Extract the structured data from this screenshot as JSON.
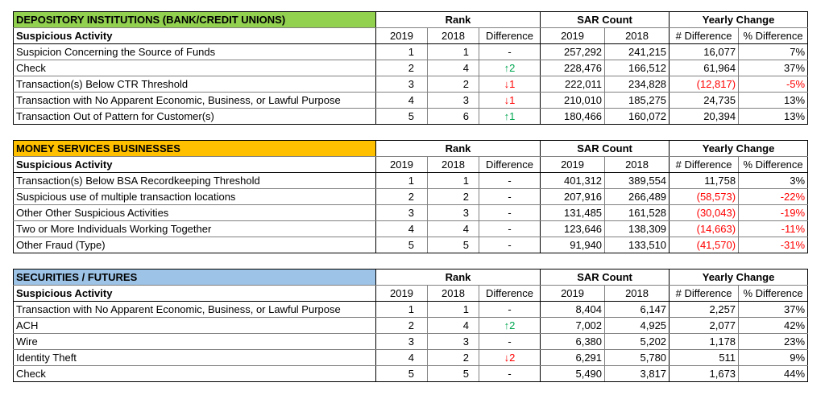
{
  "colors": {
    "depository_header": "#92d050",
    "msb_header": "#ffc000",
    "securities_header": "#9dc3e6",
    "negative": "#ff0000",
    "arrow_up": "#00a650",
    "arrow_down": "#ff0000"
  },
  "headers": {
    "rank": "Rank",
    "sar_count": "SAR Count",
    "yearly_change": "Yearly Change",
    "suspicious_activity": "Suspicious Activity",
    "y2019": "2019",
    "y2018": "2018",
    "difference": "Difference",
    "num_difference": "# Difference",
    "pct_difference": "% Difference"
  },
  "sections": [
    {
      "title": "DEPOSITORY INSTITUTIONS (BANK/CREDIT UNIONS)",
      "rows": [
        {
          "activity": "Suspicion Concerning the Source of Funds",
          "rank2019": "1",
          "rank2018": "1",
          "arrow": "",
          "diff": "-",
          "sar2019": "257,292",
          "sar2018": "241,215",
          "numdiff": "16,077",
          "pctdiff": "7%",
          "neg": false
        },
        {
          "activity": "Check",
          "rank2019": "2",
          "rank2018": "4",
          "arrow": "↑",
          "diff": "2",
          "sar2019": "228,476",
          "sar2018": "166,512",
          "numdiff": "61,964",
          "pctdiff": "37%",
          "neg": false
        },
        {
          "activity": "Transaction(s) Below CTR Threshold",
          "rank2019": "3",
          "rank2018": "2",
          "arrow": "↓",
          "diff": "1",
          "sar2019": "222,011",
          "sar2018": "234,828",
          "numdiff": "(12,817)",
          "pctdiff": "-5%",
          "neg": true
        },
        {
          "activity": "Transaction with No Apparent Economic, Business, or Lawful Purpose",
          "rank2019": "4",
          "rank2018": "3",
          "arrow": "↓",
          "diff": "1",
          "sar2019": "210,010",
          "sar2018": "185,275",
          "numdiff": "24,735",
          "pctdiff": "13%",
          "neg": false
        },
        {
          "activity": "Transaction Out of Pattern for Customer(s)",
          "rank2019": "5",
          "rank2018": "6",
          "arrow": "↑",
          "diff": "1",
          "sar2019": "180,466",
          "sar2018": "160,072",
          "numdiff": "20,394",
          "pctdiff": "13%",
          "neg": false
        }
      ]
    },
    {
      "title": "MONEY SERVICES BUSINESSES",
      "rows": [
        {
          "activity": "Transaction(s) Below BSA Recordkeeping Threshold",
          "rank2019": "1",
          "rank2018": "1",
          "arrow": "",
          "diff": "-",
          "sar2019": "401,312",
          "sar2018": "389,554",
          "numdiff": "11,758",
          "pctdiff": "3%",
          "neg": false
        },
        {
          "activity": "Suspicious use of multiple transaction locations",
          "rank2019": "2",
          "rank2018": "2",
          "arrow": "",
          "diff": "-",
          "sar2019": "207,916",
          "sar2018": "266,489",
          "numdiff": "(58,573)",
          "pctdiff": "-22%",
          "neg": true
        },
        {
          "activity": "Other Other Suspicious Activities",
          "rank2019": "3",
          "rank2018": "3",
          "arrow": "",
          "diff": "-",
          "sar2019": "131,485",
          "sar2018": "161,528",
          "numdiff": "(30,043)",
          "pctdiff": "-19%",
          "neg": true
        },
        {
          "activity": "Two or More Individuals Working Together",
          "rank2019": "4",
          "rank2018": "4",
          "arrow": "",
          "diff": "-",
          "sar2019": "123,646",
          "sar2018": "138,309",
          "numdiff": "(14,663)",
          "pctdiff": "-11%",
          "neg": true
        },
        {
          "activity": "Other Fraud (Type)",
          "rank2019": "5",
          "rank2018": "5",
          "arrow": "",
          "diff": "-",
          "sar2019": "91,940",
          "sar2018": "133,510",
          "numdiff": "(41,570)",
          "pctdiff": "-31%",
          "neg": true
        }
      ]
    },
    {
      "title": "SECURITIES / FUTURES",
      "rows": [
        {
          "activity": "Transaction with No Apparent Economic, Business, or Lawful Purpose",
          "rank2019": "1",
          "rank2018": "1",
          "arrow": "",
          "diff": "-",
          "sar2019": "8,404",
          "sar2018": "6,147",
          "numdiff": "2,257",
          "pctdiff": "37%",
          "neg": false
        },
        {
          "activity": "ACH",
          "rank2019": "2",
          "rank2018": "4",
          "arrow": "↑",
          "diff": "2",
          "sar2019": "7,002",
          "sar2018": "4,925",
          "numdiff": "2,077",
          "pctdiff": "42%",
          "neg": false
        },
        {
          "activity": "Wire",
          "rank2019": "3",
          "rank2018": "3",
          "arrow": "",
          "diff": "-",
          "sar2019": "6,380",
          "sar2018": "5,202",
          "numdiff": "1,178",
          "pctdiff": "23%",
          "neg": false
        },
        {
          "activity": "Identity Theft",
          "rank2019": "4",
          "rank2018": "2",
          "arrow": "↓",
          "diff": "2",
          "sar2019": "6,291",
          "sar2018": "5,780",
          "numdiff": "511",
          "pctdiff": "9%",
          "neg": false
        },
        {
          "activity": "Check",
          "rank2019": "5",
          "rank2018": "5",
          "arrow": "",
          "diff": "-",
          "sar2019": "5,490",
          "sar2018": "3,817",
          "numdiff": "1,673",
          "pctdiff": "44%",
          "neg": false
        }
      ]
    }
  ]
}
